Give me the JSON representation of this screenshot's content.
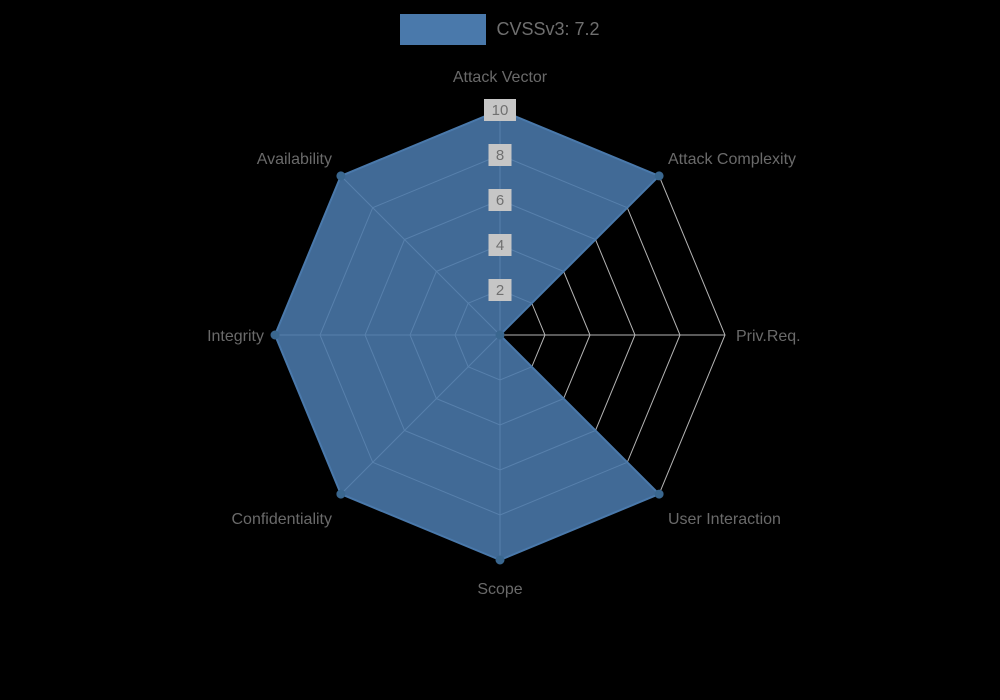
{
  "chart_data": {
    "type": "radar",
    "title": "CVSSv3: 7.2",
    "categories": [
      "Attack Vector",
      "Attack Complexity",
      "Priv.Req.",
      "User Interaction",
      "Scope",
      "Confidentiality",
      "Integrity",
      "Availability"
    ],
    "values": [
      10,
      10,
      0,
      10,
      10,
      10,
      10,
      10
    ],
    "ticks": [
      2,
      4,
      6,
      8,
      10
    ],
    "range": [
      0,
      10
    ],
    "legend_position": "top",
    "grid": true,
    "colors": {
      "fill": "#4a79ab",
      "border": "#4a79ab",
      "point": "#3a678f",
      "grid": "#b4b4b4",
      "label": "#6a6a6a",
      "tick_text": "#707070",
      "tick_backdrop": "#c6c6c6",
      "background": "#000000"
    }
  }
}
